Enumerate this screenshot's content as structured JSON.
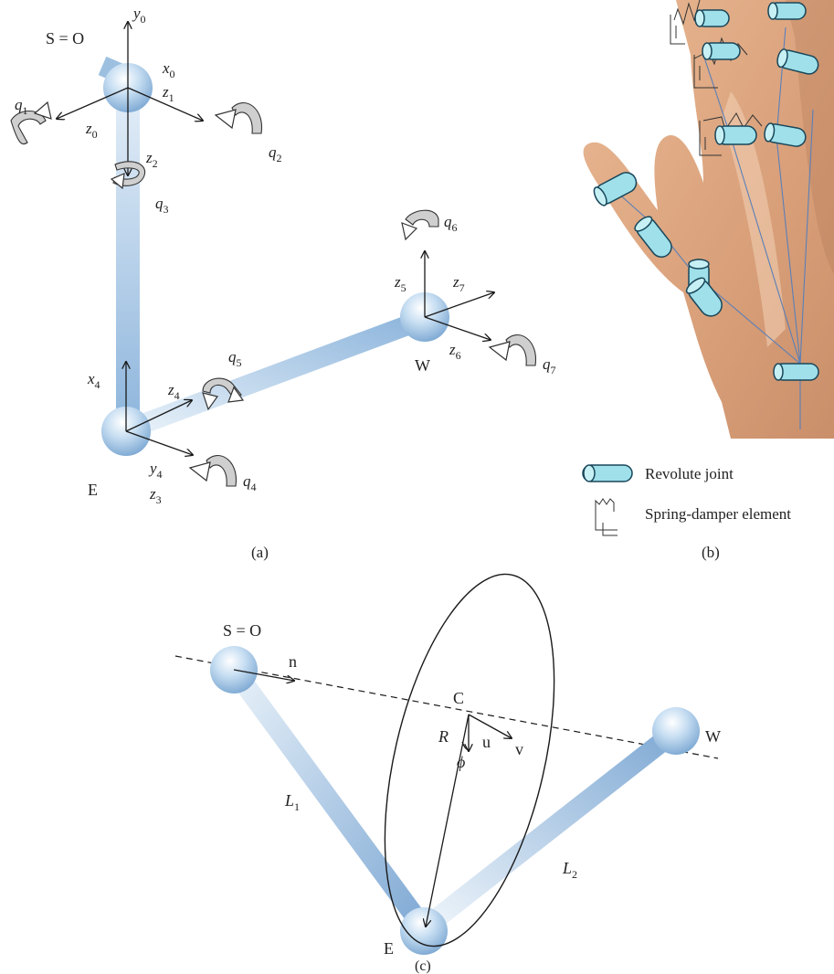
{
  "panel_a": {
    "caption": "(a)",
    "joints": {
      "shoulder": "S = O",
      "elbow": "E",
      "wrist": "W"
    },
    "frames": {
      "y0": "y0",
      "x0": "x0",
      "z0": "z0",
      "z1": "z1",
      "z2": "z2",
      "x4": "x4",
      "z4": "z4",
      "y4": "y4",
      "z3": "z3",
      "z5": "z5",
      "z7": "z7",
      "z6": "z6"
    },
    "rotations": [
      "q1",
      "q2",
      "q3",
      "q4",
      "q5",
      "q6",
      "q7"
    ]
  },
  "panel_b": {
    "caption": "(b)",
    "legend": [
      {
        "icon": "revolute-joint-icon",
        "label": "Revolute joint"
      },
      {
        "icon": "spring-damper-icon",
        "label": "Spring-damper element"
      }
    ],
    "colors": {
      "joint_fill": "#9fe0ea",
      "skin": "#d9a07a"
    }
  },
  "panel_c": {
    "caption": "(c)",
    "points": {
      "shoulder": "S = O",
      "elbow": "E",
      "wrist": "W",
      "center": "C"
    },
    "vectors": {
      "n": "n",
      "v": "v",
      "u": "u"
    },
    "radius": "R",
    "angle": "ϕ",
    "links": {
      "upper": "L1",
      "fore": "L2"
    }
  },
  "colors": {
    "limb": "#8fb8dc",
    "sphere": "#a9cbe8",
    "axis": "#1a1a1a"
  }
}
